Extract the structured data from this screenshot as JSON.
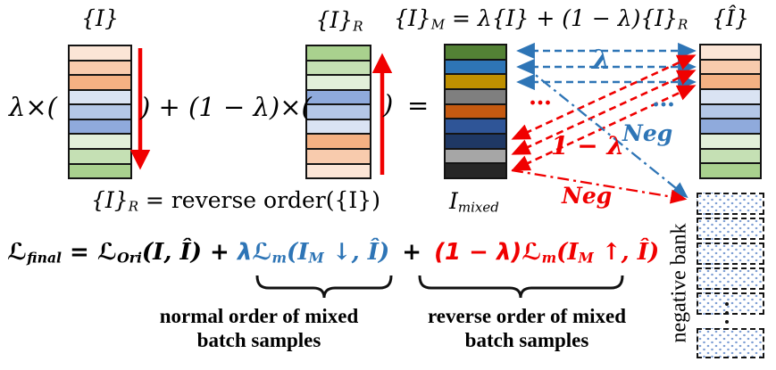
{
  "colors": {
    "accent_blue": "#2E75B6",
    "accent_red": "#F00000"
  },
  "stacks": {
    "original": {
      "title_base": "{I}",
      "colors": [
        "#FBE5D6",
        "#F8CBAD",
        "#F4B183",
        "#DAE3F3",
        "#B4C7E7",
        "#8FAADC",
        "#E2EFDA",
        "#C5E0B4",
        "#A9D18E"
      ]
    },
    "reversed": {
      "title_base": "{I}",
      "title_sub": "R",
      "colors": [
        "#A9D18E",
        "#C5E0B4",
        "#E2EFDA",
        "#8FAADC",
        "#B4C7E7",
        "#DAE3F3",
        "#F4B183",
        "#F8CBAD",
        "#FBE5D6"
      ]
    },
    "mixed": {
      "caption_base": "I",
      "caption_sub": "mixed",
      "colors": [
        "#538135",
        "#2E75B6",
        "#BF9000",
        "#7F7F7F",
        "#C55A11",
        "#2F5597",
        "#1F3864",
        "#A6A6A6",
        "#262626"
      ]
    },
    "target": {
      "title": "{Î}",
      "colors": [
        "#FBE5D6",
        "#F8CBAD",
        "#F4B183",
        "#DAE3F3",
        "#B4C7E7",
        "#8FAADC",
        "#E2EFDA",
        "#C5E0B4",
        "#A9D18E"
      ]
    }
  },
  "operators": {
    "lambda_times": "λ×(",
    "plus_one_minus_lambda_times": ") + (1 − λ)×(",
    "close_paren": ")",
    "equals": "="
  },
  "top_equation": {
    "p1": "{I}",
    "s1": "M",
    "p2": " = λ{I} + (1 − λ){I}",
    "s2": "R"
  },
  "reverse_equation": {
    "p1": "{I}",
    "s1": "R",
    "p2": " = reverse order({I})"
  },
  "annotations": {
    "lambda": "λ",
    "one_minus_lambda": "1 − λ",
    "neg_blue": "Neg",
    "neg_red": "Neg",
    "dots_red": "…",
    "dots_blue": "…"
  },
  "negative_bank": {
    "label": "negative bank",
    "top_boxes": 5,
    "bottom_boxes": 1
  },
  "loss": {
    "t1": "ℒ",
    "t2": "final",
    "t3": " = ℒ",
    "t4": "Ori",
    "t5": "(I, Î) +",
    "t6": "λℒ",
    "t7": "m",
    "t8": "(I",
    "t9": "M",
    "t10": " ↓, Î)",
    "t11": "+",
    "t12": "(1 − λ)ℒ",
    "t13": "m",
    "t14": "(I",
    "t15": "M",
    "t16": " ↑, Î)"
  },
  "captions": {
    "normal_line1": "normal order of mixed",
    "normal_line2": "batch samples",
    "reverse_line1": "reverse order of mixed",
    "reverse_line2": "batch samples"
  }
}
